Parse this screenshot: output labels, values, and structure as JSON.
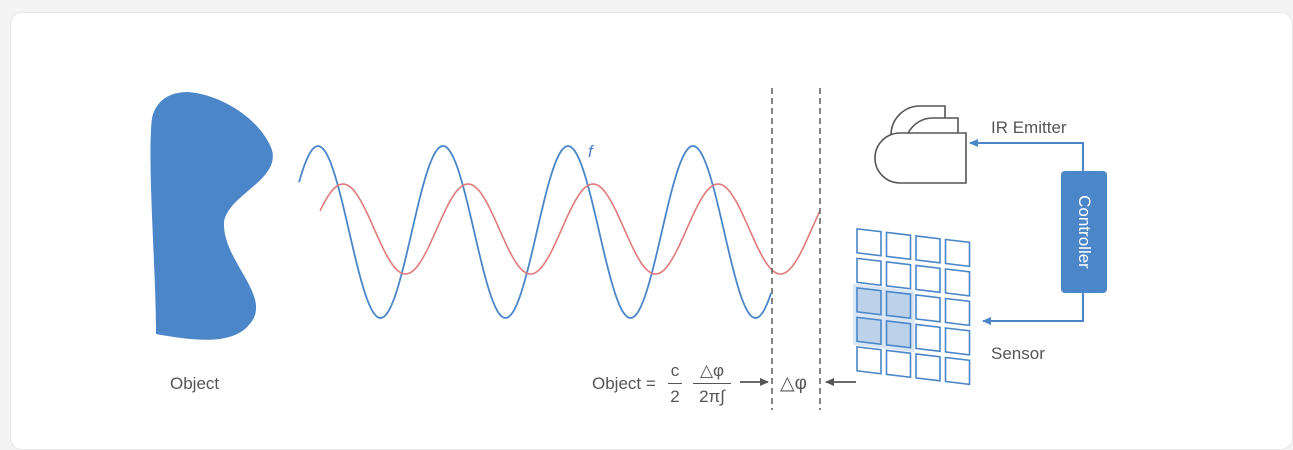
{
  "labels": {
    "object": "Object",
    "ir_emitter": "IR Emitter",
    "sensor": "Sensor",
    "controller": "Controller",
    "frequency": "f",
    "delta_phi": "△φ"
  },
  "formula": {
    "lhs": "Object =",
    "c_num": "c",
    "c_den": "2",
    "phi_num": "△φ",
    "phi_den": "2π∫"
  },
  "colors": {
    "object": "#4a86c8",
    "emitted_wave": "#4a86c8",
    "reflected_wave": "#e07a7a",
    "controller": "#4a86c8",
    "highlight_cell": "#bcd1ea",
    "outline": "#4a86c8",
    "text": "#555555"
  }
}
